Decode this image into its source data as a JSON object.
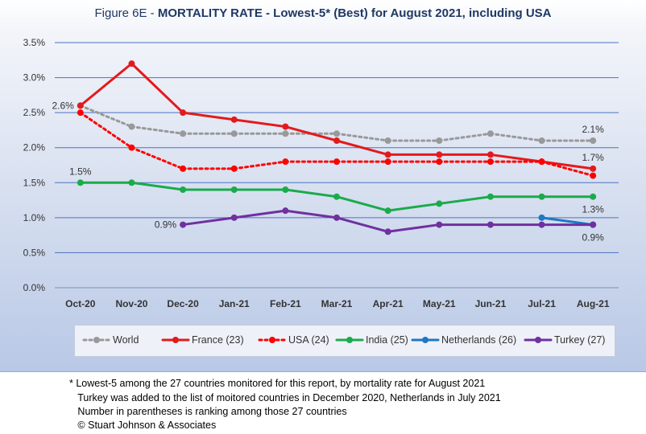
{
  "title": {
    "prefix": "Figure 6E  - ",
    "main": "MORTALITY RATE - Lowest-5* (Best) for August 2021, including USA"
  },
  "chart_data": {
    "type": "line",
    "categories": [
      "Oct-20",
      "Nov-20",
      "Dec-20",
      "Jan-21",
      "Feb-21",
      "Mar-21",
      "Apr-21",
      "May-21",
      "Jun-21",
      "Jul-21",
      "Aug-21"
    ],
    "ylim": [
      0,
      3.5
    ],
    "yticks": [
      "0.0%",
      "0.5%",
      "1.0%",
      "1.5%",
      "2.0%",
      "2.5%",
      "3.0%",
      "3.5%"
    ],
    "grid": true,
    "legend_position": "bottom",
    "series": [
      {
        "name": "World",
        "color": "#999999",
        "style": "dotted",
        "values": [
          2.6,
          2.3,
          2.2,
          2.2,
          2.2,
          2.2,
          2.1,
          2.1,
          2.2,
          2.1,
          2.1
        ]
      },
      {
        "name": "France (23)",
        "color": "#e31a1c",
        "style": "solid",
        "values": [
          2.6,
          3.2,
          2.5,
          2.4,
          2.3,
          2.1,
          1.9,
          1.9,
          1.9,
          1.8,
          1.7
        ]
      },
      {
        "name": "USA (24)",
        "color": "#ff0000",
        "style": "dotted",
        "values": [
          2.5,
          2.0,
          1.7,
          1.7,
          1.8,
          1.8,
          1.8,
          1.8,
          1.8,
          1.8,
          1.6
        ]
      },
      {
        "name": "India (25)",
        "color": "#1aab4b",
        "style": "solid",
        "values": [
          1.5,
          1.5,
          1.4,
          1.4,
          1.4,
          1.3,
          1.1,
          1.2,
          1.3,
          1.3,
          1.3
        ]
      },
      {
        "name": "Netherlands (26)",
        "color": "#1f77c4",
        "style": "solid",
        "values": [
          null,
          null,
          null,
          null,
          null,
          null,
          null,
          null,
          null,
          1.0,
          0.9
        ]
      },
      {
        "name": "Turkey (27)",
        "color": "#7030a0",
        "style": "solid",
        "values": [
          null,
          null,
          0.9,
          1.0,
          1.1,
          1.0,
          0.8,
          0.9,
          0.9,
          0.9,
          0.9
        ]
      }
    ],
    "annotations": [
      {
        "text": "2.6%",
        "series": 0,
        "index": 0,
        "pos": "left"
      },
      {
        "text": "1.5%",
        "series": 3,
        "index": 0,
        "pos": "above"
      },
      {
        "text": "0.9%",
        "series": 5,
        "index": 2,
        "pos": "left"
      },
      {
        "text": "2.1%",
        "series": 0,
        "index": 10,
        "pos": "above"
      },
      {
        "text": "1.7%",
        "series": 1,
        "index": 10,
        "pos": "above"
      },
      {
        "text": "1.3%",
        "series": 3,
        "index": 10,
        "pos": "below"
      },
      {
        "text": "0.9%",
        "series": 5,
        "index": 10,
        "pos": "below"
      }
    ]
  },
  "footnotes": [
    "* Lowest-5 among the 27 countries monitored for this report, by mortality rate for August 2021",
    "   Turkey was added to the list of moitored countries in December 2020, Netherlands in July 2021",
    "   Number in parentheses is ranking among those 27 countries",
    "   © Stuart Johnson & Associates"
  ]
}
